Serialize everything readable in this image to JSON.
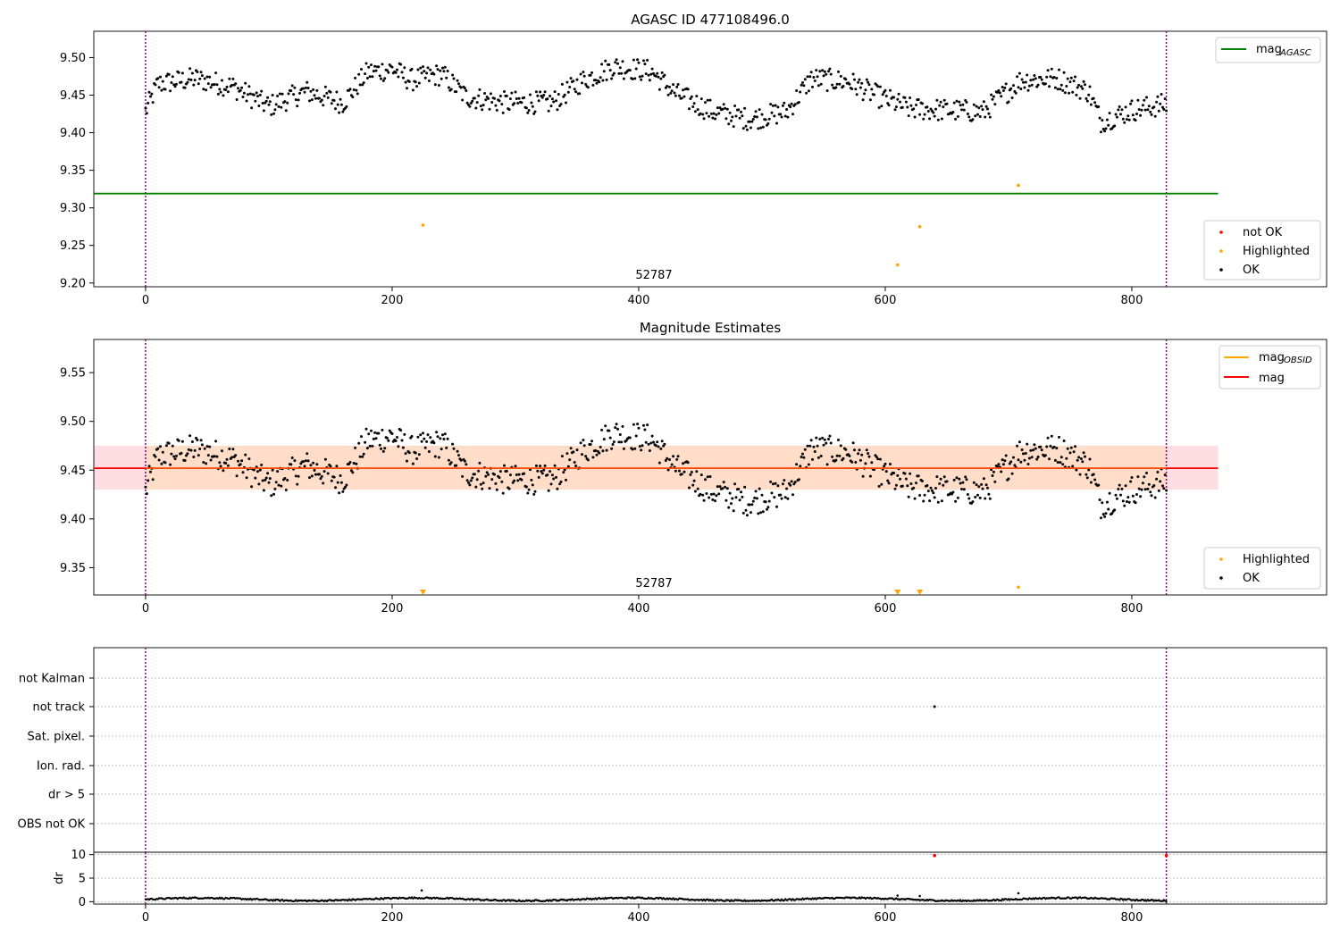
{
  "chart_data": [
    {
      "type": "scatter",
      "title": "AGASC ID 477108496.0",
      "xlim": [
        -42,
        958
      ],
      "ylim": [
        9.195,
        9.535
      ],
      "yticks": [
        "9.20",
        "9.25",
        "9.30",
        "9.35",
        "9.40",
        "9.45",
        "9.50"
      ],
      "ytick_values": [
        9.2,
        9.25,
        9.3,
        9.35,
        9.4,
        9.45,
        9.5
      ],
      "xticks": [
        "0",
        "200",
        "400",
        "600",
        "800"
      ],
      "xtick_values": [
        0,
        200,
        400,
        600,
        800
      ],
      "obs_label": "52787",
      "obs_boundaries": [
        0,
        828
      ],
      "reference_line": {
        "name": "mag_AGASC",
        "value": 9.319,
        "x_range": [
          -42,
          870
        ],
        "color": "#008000"
      },
      "highlighted_points": [
        [
          225,
          9.277
        ],
        [
          610,
          9.224
        ],
        [
          628,
          9.275
        ],
        [
          708,
          9.33
        ]
      ],
      "legend_top": {
        "main": "mag",
        "sub": "AGASC",
        "color": "#008000"
      },
      "legend_bottom": [
        {
          "label": "not OK",
          "color": "#ff0000"
        },
        {
          "label": "Highlighted",
          "color": "#ffa500"
        },
        {
          "label": "OK",
          "color": "#000000"
        }
      ]
    },
    {
      "type": "scatter",
      "title": "Magnitude Estimates",
      "xlim": [
        -42,
        958
      ],
      "ylim": [
        9.322,
        9.584
      ],
      "yticks": [
        "9.35",
        "9.40",
        "9.45",
        "9.50",
        "9.55"
      ],
      "ytick_values": [
        9.35,
        9.4,
        9.45,
        9.5,
        9.55
      ],
      "xticks": [
        "0",
        "200",
        "400",
        "600",
        "800"
      ],
      "xtick_values": [
        0,
        200,
        400,
        600,
        800
      ],
      "obs_label": "52787",
      "obs_boundaries": [
        0,
        828
      ],
      "mag_line": {
        "value": 9.452,
        "x_range": [
          -42,
          870
        ],
        "color": "#ff0000"
      },
      "mag_band": {
        "low": 9.43,
        "high": 9.475,
        "color": "#ffb6c1"
      },
      "obsid_band": {
        "low": 9.43,
        "high": 9.475,
        "x_range": [
          0,
          828
        ],
        "color": "#ffdcc0"
      },
      "highlighted_points": [
        [
          708,
          9.33
        ]
      ],
      "clipped_markers_x": [
        225,
        610,
        628
      ],
      "legend_top": [
        {
          "main": "mag",
          "sub": "OBSID",
          "color": "#ffa500"
        },
        {
          "main": "mag",
          "sub": "",
          "color": "#ff0000"
        }
      ],
      "legend_bottom": [
        {
          "label": "Highlighted",
          "color": "#ffa500"
        },
        {
          "label": "OK",
          "color": "#000000"
        }
      ]
    },
    {
      "type": "scatter",
      "title": "",
      "xlim": [
        -42,
        958
      ],
      "flag_labels": [
        "not Kalman",
        "not track",
        "Sat. pixel.",
        "Ion. rad.",
        "dr > 5",
        "OBS not OK"
      ],
      "flag_points": [
        {
          "flag": "not track",
          "x": 640
        }
      ],
      "obs_boundaries": [
        0,
        828
      ]
    },
    {
      "type": "scatter",
      "title": "",
      "ylabel": "dr",
      "xlim": [
        -42,
        958
      ],
      "ylim": [
        -0.5,
        10.5
      ],
      "yticks": [
        "0",
        "5",
        "10"
      ],
      "ytick_values": [
        0,
        5,
        10
      ],
      "xticks": [
        "0",
        "200",
        "400",
        "600",
        "800"
      ],
      "xtick_values": [
        0,
        200,
        400,
        600,
        800
      ],
      "dr_outliers": [
        [
          224,
          2.4
        ],
        [
          610,
          1.3
        ],
        [
          628,
          1.2
        ],
        [
          708,
          1.8
        ]
      ],
      "dr_red_points": [
        [
          640,
          9.8
        ],
        [
          828,
          9.8
        ]
      ],
      "obs_boundaries": [
        0,
        828
      ]
    }
  ]
}
